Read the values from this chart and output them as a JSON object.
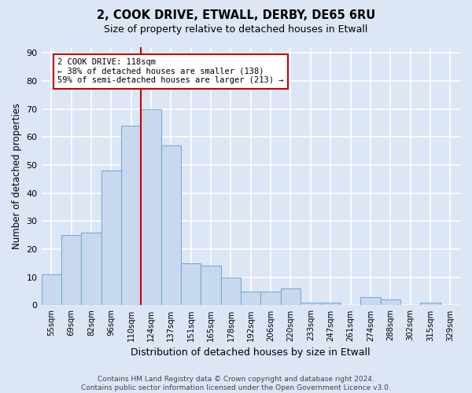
{
  "title": "2, COOK DRIVE, ETWALL, DERBY, DE65 6RU",
  "subtitle": "Size of property relative to detached houses in Etwall",
  "xlabel": "Distribution of detached houses by size in Etwall",
  "ylabel": "Number of detached properties",
  "categories": [
    "55sqm",
    "69sqm",
    "82sqm",
    "96sqm",
    "110sqm",
    "124sqm",
    "137sqm",
    "151sqm",
    "165sqm",
    "178sqm",
    "192sqm",
    "206sqm",
    "220sqm",
    "233sqm",
    "247sqm",
    "261sqm",
    "274sqm",
    "288sqm",
    "302sqm",
    "315sqm",
    "329sqm"
  ],
  "values": [
    11,
    25,
    26,
    48,
    64,
    70,
    57,
    15,
    14,
    10,
    5,
    5,
    6,
    1,
    1,
    0,
    3,
    2,
    0,
    1,
    0
  ],
  "bar_color": "#c8d9ef",
  "bar_edge_color": "#7aaad4",
  "property_line_x": 4.5,
  "property_line_label": "2 COOK DRIVE: 118sqm",
  "annotation_line1": "← 38% of detached houses are smaller (138)",
  "annotation_line2": "59% of semi-detached houses are larger (213) →",
  "annotation_box_color": "#ffffff",
  "annotation_box_edge": "#cc0000",
  "vline_color": "#cc0000",
  "ylim": [
    0,
    92
  ],
  "yticks": [
    0,
    10,
    20,
    30,
    40,
    50,
    60,
    70,
    80,
    90
  ],
  "footer": "Contains HM Land Registry data © Crown copyright and database right 2024.\nContains public sector information licensed under the Open Government Licence v3.0.",
  "bg_color": "#dce6f5",
  "plot_bg_color": "#dce6f5",
  "grid_color": "#ffffff"
}
